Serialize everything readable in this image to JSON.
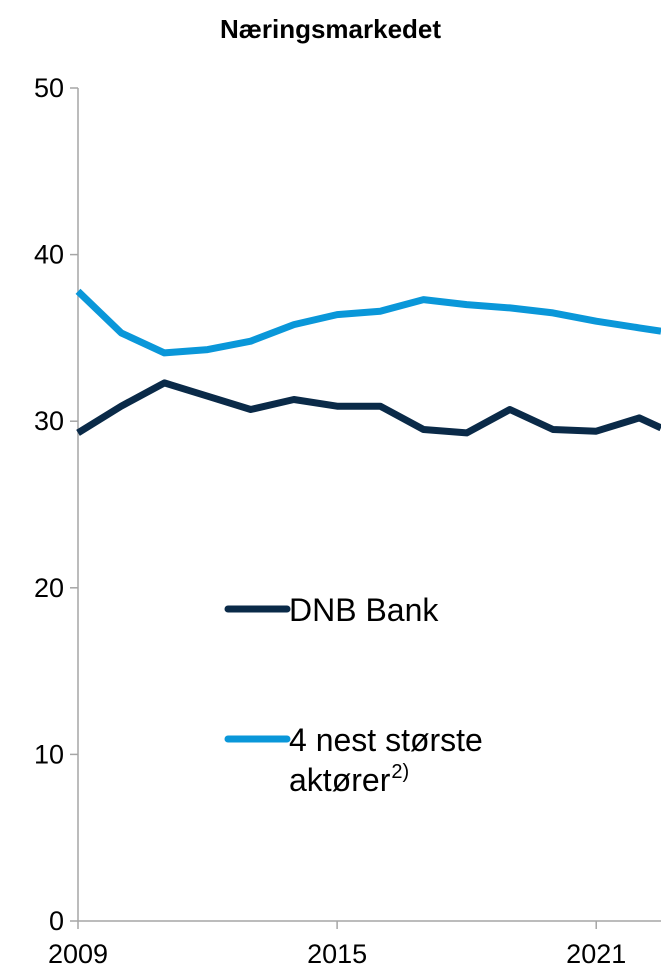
{
  "chart_data": {
    "type": "line",
    "title": "Næringsmarkedet",
    "xlabel": "",
    "ylabel": "",
    "ylim": [
      0,
      50
    ],
    "xlim": [
      2009,
      2022.5
    ],
    "yticks": [
      0,
      10,
      20,
      30,
      40,
      50
    ],
    "xticks": [
      2009,
      2015,
      2021
    ],
    "grid": false,
    "legend_position": "center-left inside plot",
    "x": [
      2009,
      2010,
      2011,
      2012,
      2013,
      2014,
      2015,
      2016,
      2017,
      2018,
      2019,
      2020,
      2021,
      2022,
      2022.5
    ],
    "series": [
      {
        "name": "DNB Bank",
        "color": "#0a2a48",
        "values": [
          29.3,
          30.9,
          32.3,
          31.5,
          30.7,
          31.3,
          30.9,
          30.9,
          29.5,
          29.3,
          30.7,
          29.5,
          29.4,
          30.2,
          29.6
        ]
      },
      {
        "name": "4 nest største aktører",
        "name_sup": "2)",
        "color": "#0a97d9",
        "values": [
          37.8,
          35.3,
          34.1,
          34.3,
          34.8,
          35.8,
          36.4,
          36.6,
          37.3,
          37.0,
          36.8,
          36.5,
          36.0,
          35.6,
          35.4
        ]
      }
    ]
  }
}
